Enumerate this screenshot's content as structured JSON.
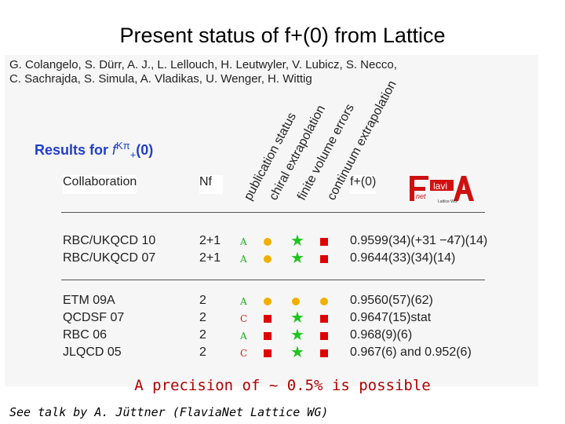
{
  "title": "Present status of f+(0) from Lattice",
  "authors": [
    "G. Colangelo, S. Dürr, A. J., L. Lellouch, H. Leutwyler, V. Lubicz, S. Necco,",
    "C. Sachrajda, S. Simula, A. Vladikas, U. Wenger, H. Wittig"
  ],
  "results_heading": {
    "prefix": "Results for ",
    "f": "f",
    "sup": "Kπ",
    "sub": "+",
    "suffix": "(0)"
  },
  "columns": {
    "collaboration": "Collaboration",
    "nf": "Nf",
    "rotated": [
      "publication status",
      "chiral extrapolation",
      "finite volume errors",
      "continuum extrapolation"
    ],
    "value": "f+(0)"
  },
  "logo": {
    "text_main": "lavi",
    "text_sub": "net",
    "text_small": "Lattice WG"
  },
  "colors": {
    "square": "#e00000",
    "dot": "#f0b000",
    "star": "#1fc51f",
    "status_green": "#1fb51f",
    "status_red": "#d02020",
    "heading_blue": "#2040c8"
  },
  "group1": [
    {
      "collab": "RBC/UKQCD 10",
      "nf": "2+1",
      "status": "A",
      "marks": [
        "dot",
        "star",
        "square"
      ],
      "value": "0.9599(34)(+31 −47)(14)"
    },
    {
      "collab": "RBC/UKQCD 07",
      "nf": "2+1",
      "status": "A",
      "marks": [
        "dot",
        "star",
        "square"
      ],
      "value": "0.9644(33)(34)(14)"
    }
  ],
  "group2": [
    {
      "collab": "ETM 09A",
      "nf": "2",
      "status": "A",
      "marks": [
        "dot",
        "dot",
        "dot"
      ],
      "value": "0.9560(57)(62)"
    },
    {
      "collab": "QCDSF 07",
      "nf": "2",
      "status": "C",
      "marks": [
        "square",
        "star",
        "square"
      ],
      "value": "0.9647(15)stat"
    },
    {
      "collab": "RBC 06",
      "nf": "2",
      "status": "A",
      "marks": [
        "square",
        "star",
        "square"
      ],
      "value": "0.968(9)(6)"
    },
    {
      "collab": "JLQCD 05",
      "nf": "2",
      "status": "C",
      "marks": [
        "square",
        "star",
        "square"
      ],
      "value": "0.967(6) and 0.952(6)"
    }
  ],
  "footer": "A precision of ~ 0.5% is possible",
  "talk": "See talk by A. Jüttner (FlaviaNet Lattice WG)"
}
